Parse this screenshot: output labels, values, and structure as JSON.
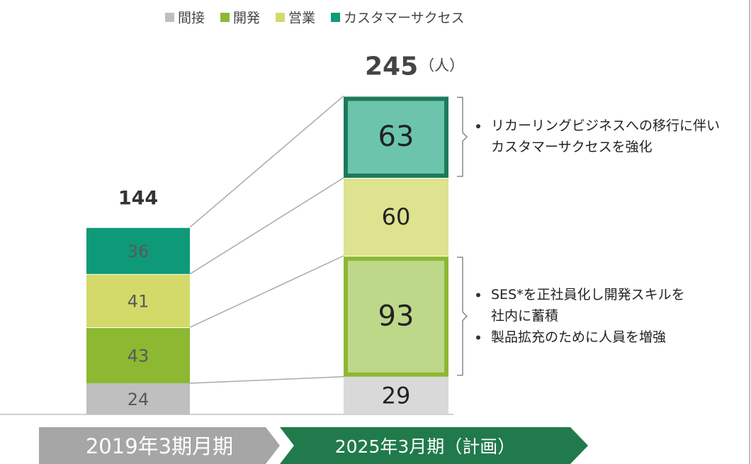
{
  "chart_data": {
    "type": "stacked_bar",
    "categories": [
      "2019年3期月期",
      "2025年3月期（計画）"
    ],
    "series": [
      {
        "name": "間接",
        "color": [
          "#bfbfbf",
          "#d9d9d9"
        ],
        "outline": [
          null,
          null
        ],
        "values": [
          24,
          29
        ]
      },
      {
        "name": "開発",
        "color": [
          "#8cb832",
          "#bed88a"
        ],
        "outline": [
          null,
          "#8cb832"
        ],
        "values": [
          43,
          93
        ]
      },
      {
        "name": "営業",
        "color": [
          "#d3da6a",
          "#dde38e"
        ],
        "outline": [
          null,
          null
        ],
        "values": [
          41,
          60
        ]
      },
      {
        "name": "カスタマーサクセス",
        "color": [
          "#0e9a78",
          "#6cc4ad"
        ],
        "outline": [
          null,
          "#1d7a5a"
        ],
        "values": [
          36,
          63
        ]
      }
    ],
    "totals": [
      144,
      245
    ],
    "unit": "（人）",
    "category_colors": [
      "#a6a6a6",
      "#217a4b"
    ],
    "annotations": [
      {
        "bullets": [
          [
            "リカーリングビジネスへの移行に伴い",
            "カスタマーサクセスを強化"
          ]
        ]
      },
      {
        "bullets": [
          [
            "SES*を正社員化し開発スキルを",
            "社内に蓄積"
          ],
          [
            "製品拡充のために人員を増強"
          ]
        ]
      }
    ]
  }
}
